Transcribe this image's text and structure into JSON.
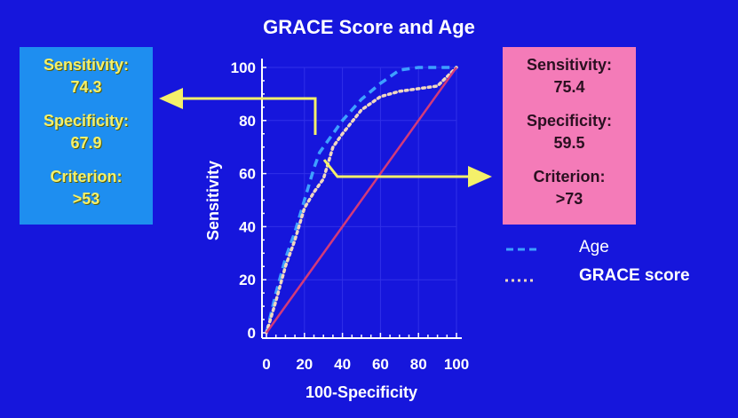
{
  "chart_data": {
    "type": "line",
    "title": "GRACE Score and Age",
    "xlabel": "100-Specificity",
    "ylabel": "Sensitivity",
    "xlim": [
      0,
      100
    ],
    "ylim": [
      0,
      100
    ],
    "xticks": [
      "0",
      "20",
      "40",
      "60",
      "80",
      "100"
    ],
    "yticks": [
      "0",
      "20",
      "40",
      "60",
      "80",
      "100"
    ],
    "legend": "bottom-right",
    "series": [
      {
        "name": "Age",
        "style": "dashed",
        "color": "#3ea0ff",
        "x": [
          0,
          5,
          10,
          15,
          20,
          25,
          28,
          35,
          40,
          50,
          60,
          70,
          80,
          100
        ],
        "y": [
          0,
          15,
          28,
          38,
          50,
          62,
          68,
          75,
          80,
          88,
          94,
          99,
          100,
          100
        ]
      },
      {
        "name": "GRACE score",
        "style": "dotted",
        "color": "#f0d8c0",
        "x": [
          0,
          5,
          10,
          15,
          20,
          25,
          30,
          35,
          40,
          50,
          60,
          70,
          80,
          90,
          100
        ],
        "y": [
          0,
          12,
          25,
          35,
          47,
          53,
          58,
          70,
          75,
          84,
          89,
          91,
          92,
          93,
          100
        ]
      },
      {
        "style": "solid",
        "color": "#d23a7a",
        "x": [
          0,
          100
        ],
        "y": [
          0,
          100
        ]
      }
    ],
    "annotations": {
      "age": {
        "sensitivity_label": "Sensitivity:",
        "sensitivity": "74.3",
        "specificity_label": "Specificity:",
        "specificity": "67.9",
        "criterion_label": "Criterion:",
        "criterion": ">53",
        "color": "#1e8ef0"
      },
      "grace": {
        "sensitivity_label": "Sensitivity:",
        "sensitivity": "75.4",
        "specificity_label": "Specificity:",
        "specificity": "59.5",
        "criterion_label": "Criterion:",
        "criterion": ">73",
        "color": "#f47bb8"
      }
    }
  }
}
